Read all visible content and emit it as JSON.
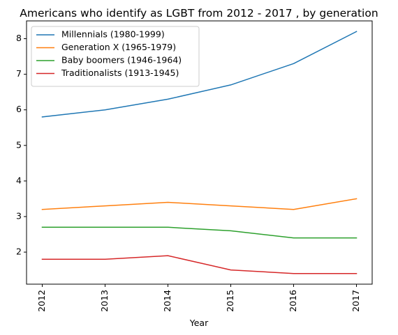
{
  "chart_data": {
    "type": "line",
    "title": "Americans who identify as LGBT from 2012 - 2017 , by generation",
    "xlabel": "Year",
    "ylabel": "",
    "x": [
      "2012",
      "2013",
      "2014",
      "2015",
      "2016",
      "2017"
    ],
    "ylim": [
      1.1,
      8.5
    ],
    "yticks": [
      "2",
      "3",
      "4",
      "5",
      "6",
      "7",
      "8"
    ],
    "grid": false,
    "legend_placement": "top-left",
    "series": [
      {
        "name": "Millennials (1980-1999)",
        "color": "#1f77b4",
        "values": [
          5.8,
          6.0,
          6.3,
          6.7,
          7.3,
          8.2
        ]
      },
      {
        "name": "Generation X (1965-1979)",
        "color": "#ff7f0e",
        "values": [
          3.2,
          3.3,
          3.4,
          3.3,
          3.2,
          3.5
        ]
      },
      {
        "name": "Baby boomers (1946-1964)",
        "color": "#2ca02c",
        "values": [
          2.7,
          2.7,
          2.7,
          2.6,
          2.4,
          2.4
        ]
      },
      {
        "name": "Traditionalists (1913-1945)",
        "color": "#d62728",
        "values": [
          1.8,
          1.8,
          1.9,
          1.5,
          1.4,
          1.4
        ]
      }
    ]
  }
}
